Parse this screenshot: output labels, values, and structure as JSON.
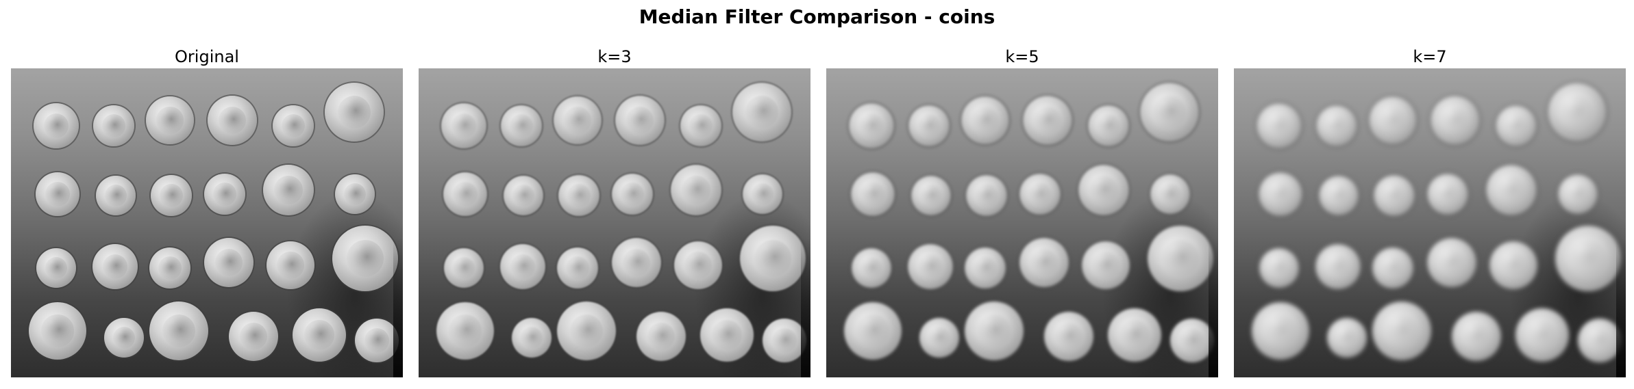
{
  "figure": {
    "title": "Median Filter Comparison - coins"
  },
  "panels": [
    {
      "title": "Original",
      "blur": "b0"
    },
    {
      "title": "k=3",
      "blur": "b1"
    },
    {
      "title": "k=5",
      "blur": "b2"
    },
    {
      "title": "k=7",
      "blur": "b3"
    }
  ]
}
